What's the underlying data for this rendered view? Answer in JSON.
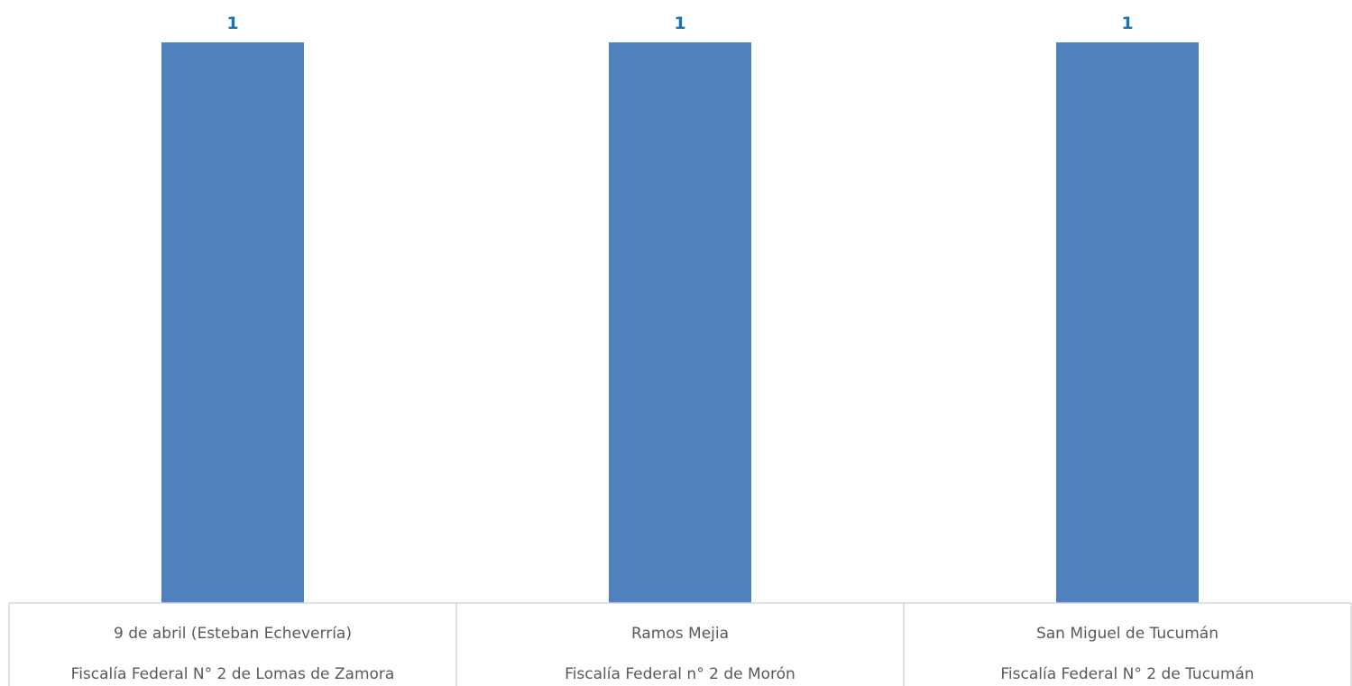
{
  "chart_data": {
    "type": "bar",
    "title": "",
    "xlabel": "",
    "ylabel": "",
    "ylim": [
      0,
      1
    ],
    "grid": false,
    "legend": "none",
    "categories": [
      [
        "9 de abril (Esteban Echeverría)",
        "Fiscalía Federal N° 2 de Lomas de Zamora"
      ],
      [
        "Ramos Mejia",
        "Fiscalía Federal n° 2 de Morón"
      ],
      [
        "San Miguel de Tucumán",
        "Fiscalía Federal N° 2 de Tucumán"
      ]
    ],
    "values": [
      1,
      1,
      1
    ],
    "data_labels": [
      "1",
      "1",
      "1"
    ],
    "colors": {
      "bar": "#4f81bd",
      "data_label": "#1f6fb5",
      "table_border": "#d9d9d9",
      "category_text": "#595959"
    }
  }
}
